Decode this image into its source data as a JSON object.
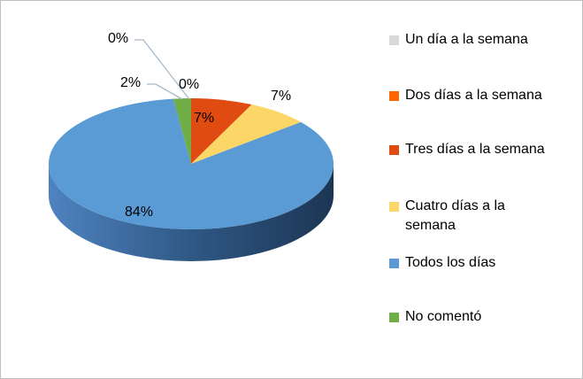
{
  "chart_data": {
    "type": "pie",
    "style": "3d",
    "title": "",
    "legend_position": "right",
    "categories": [
      "Un día a la semana",
      "Dos días a la semana",
      "Tres días a la semana",
      "Cuatro días a la semana",
      "Todos los días",
      "No comentó"
    ],
    "values": [
      0,
      0,
      7,
      7,
      84,
      2
    ],
    "labels": [
      "0%",
      "0%",
      "7%",
      "7%",
      "84%",
      "2%"
    ],
    "colors": [
      "#d9d9d9",
      "#ff6600",
      "#e04b12",
      "#fdd668",
      "#5b9bd5",
      "#70ad47"
    ]
  }
}
